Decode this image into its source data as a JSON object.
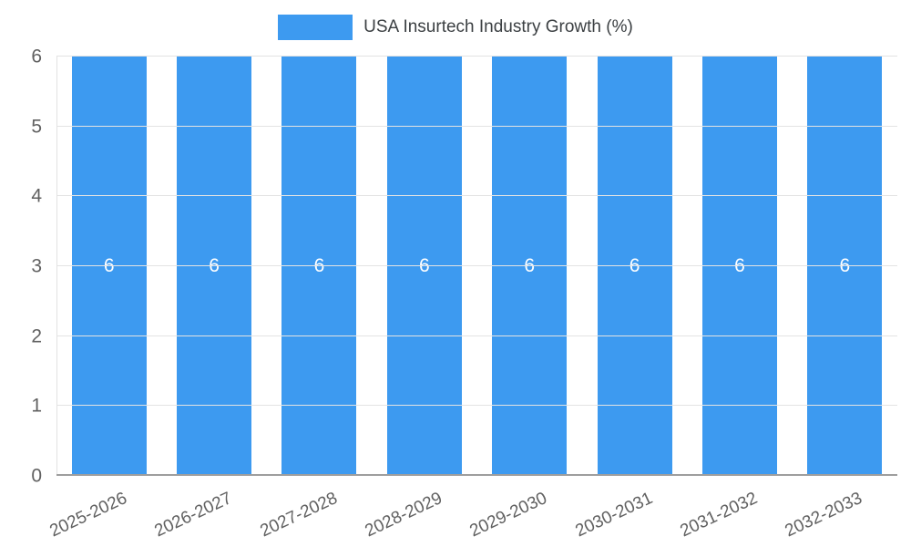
{
  "chart_data": {
    "type": "bar",
    "title": "USA Insurtech Industry Growth (%)",
    "categories": [
      "2025-2026",
      "2026-2027",
      "2027-2028",
      "2028-2029",
      "2029-2030",
      "2030-2031",
      "2031-2032",
      "2032-2033"
    ],
    "series": [
      {
        "name": "USA Insurtech Industry Growth (%)",
        "values": [
          6,
          6,
          6,
          6,
          6,
          6,
          6,
          6
        ]
      }
    ],
    "data_labels": [
      "6",
      "6",
      "6",
      "6",
      "6",
      "6",
      "6",
      "6"
    ],
    "ylim": [
      0,
      6
    ],
    "yticks": [
      0,
      1,
      2,
      3,
      4,
      5,
      6
    ],
    "grid": true,
    "legend_position": "top",
    "colors": {
      "bar": "#3d9af0",
      "data_label": "#ffffff",
      "tick_label": "#616161",
      "title": "#3c4043",
      "gridline": "#e3e3e3",
      "axis_line": "#9e9e9e"
    }
  }
}
